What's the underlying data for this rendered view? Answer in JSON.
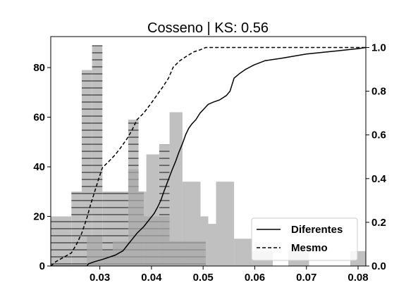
{
  "chart_data": {
    "type": "histogram+ecdf",
    "title": "Cosseno | KS: 0.56",
    "xlabel": "",
    "ylabel_left": "",
    "ylabel_right": "",
    "xlim": [
      0.0205,
      0.0815
    ],
    "ylim_left": [
      0,
      92.5
    ],
    "ylim_right": [
      0,
      1.05
    ],
    "x_ticks": [
      0.03,
      0.04,
      0.05,
      0.06,
      0.07,
      0.08
    ],
    "x_tick_labels": [
      "0.03",
      "0.04",
      "0.05",
      "0.06",
      "0.07",
      "0.08"
    ],
    "y_left_ticks": [
      0,
      20,
      40,
      60,
      80
    ],
    "y_left_tick_labels": [
      "0",
      "20",
      "40",
      "60",
      "80"
    ],
    "y_right_ticks": [
      0,
      0.2,
      0.4,
      0.6,
      0.8,
      1.0
    ],
    "y_right_tick_labels": [
      "0.0",
      "0.2",
      "0.4",
      "0.6",
      "0.8",
      "1.0"
    ],
    "grid": false,
    "legend_position": "lower-right",
    "histograms": [
      {
        "name": "Mesmo",
        "style": "hatched",
        "color": "#c0c0c0",
        "hatch_color": "#333333",
        "bins": [
          {
            "x0": 0.0205,
            "x1": 0.0245,
            "count": 20
          },
          {
            "x0": 0.0245,
            "x1": 0.0265,
            "count": 30
          },
          {
            "x0": 0.0265,
            "x1": 0.0285,
            "count": 79
          },
          {
            "x0": 0.0285,
            "x1": 0.0305,
            "count": 89
          },
          {
            "x0": 0.0305,
            "x1": 0.0355,
            "count": 30
          },
          {
            "x0": 0.0355,
            "x1": 0.0375,
            "count": 59
          },
          {
            "x0": 0.0375,
            "x1": 0.0385,
            "count": 30
          },
          {
            "x0": 0.0385,
            "x1": 0.0415,
            "count": 20
          },
          {
            "x0": 0.0415,
            "x1": 0.0435,
            "count": 49
          },
          {
            "x0": 0.0435,
            "x1": 0.0505,
            "count": 10
          }
        ]
      },
      {
        "name": "Diferentes",
        "style": "solid",
        "color": "#a8a8a8",
        "bins": [
          {
            "x0": 0.0275,
            "x1": 0.0305,
            "count": 12
          },
          {
            "x0": 0.0305,
            "x1": 0.0325,
            "count": 6
          },
          {
            "x0": 0.0325,
            "x1": 0.0355,
            "count": 10
          },
          {
            "x0": 0.0355,
            "x1": 0.0375,
            "count": 39
          },
          {
            "x0": 0.0375,
            "x1": 0.039,
            "count": 30
          },
          {
            "x0": 0.039,
            "x1": 0.0415,
            "count": 45
          },
          {
            "x0": 0.0415,
            "x1": 0.0435,
            "count": 20
          },
          {
            "x0": 0.0435,
            "x1": 0.046,
            "count": 62
          },
          {
            "x0": 0.046,
            "x1": 0.0495,
            "count": 34
          },
          {
            "x0": 0.0495,
            "x1": 0.051,
            "count": 20
          },
          {
            "x0": 0.051,
            "x1": 0.0525,
            "count": 17
          },
          {
            "x0": 0.0525,
            "x1": 0.056,
            "count": 34
          },
          {
            "x0": 0.056,
            "x1": 0.0595,
            "count": 11
          },
          {
            "x0": 0.0595,
            "x1": 0.0635,
            "count": 6
          },
          {
            "x0": 0.0665,
            "x1": 0.0705,
            "count": 6
          },
          {
            "x0": 0.0785,
            "x1": 0.0815,
            "count": 6
          }
        ]
      }
    ],
    "ecdf": [
      {
        "name": "Diferentes",
        "style": "solid",
        "color": "#000000",
        "points": [
          [
            0.0205,
            0.0
          ],
          [
            0.0275,
            0.0
          ],
          [
            0.0278,
            0.01
          ],
          [
            0.029,
            0.02
          ],
          [
            0.0305,
            0.03
          ],
          [
            0.033,
            0.05
          ],
          [
            0.0345,
            0.07
          ],
          [
            0.0355,
            0.1
          ],
          [
            0.0362,
            0.12
          ],
          [
            0.0372,
            0.15
          ],
          [
            0.0385,
            0.18
          ],
          [
            0.0395,
            0.21
          ],
          [
            0.0405,
            0.24
          ],
          [
            0.0412,
            0.27
          ],
          [
            0.0418,
            0.3
          ],
          [
            0.0424,
            0.34
          ],
          [
            0.0432,
            0.39
          ],
          [
            0.044,
            0.44
          ],
          [
            0.0447,
            0.48
          ],
          [
            0.0453,
            0.52
          ],
          [
            0.046,
            0.56
          ],
          [
            0.0466,
            0.6
          ],
          [
            0.0472,
            0.63
          ],
          [
            0.0478,
            0.65
          ],
          [
            0.0486,
            0.67
          ],
          [
            0.0494,
            0.7
          ],
          [
            0.0502,
            0.72
          ],
          [
            0.051,
            0.74
          ],
          [
            0.052,
            0.75
          ],
          [
            0.0532,
            0.76
          ],
          [
            0.0545,
            0.78
          ],
          [
            0.0552,
            0.8
          ],
          [
            0.0556,
            0.83
          ],
          [
            0.056,
            0.86
          ],
          [
            0.057,
            0.88
          ],
          [
            0.0582,
            0.9
          ],
          [
            0.0598,
            0.92
          ],
          [
            0.062,
            0.94
          ],
          [
            0.065,
            0.95
          ],
          [
            0.07,
            0.97
          ],
          [
            0.076,
            0.985
          ],
          [
            0.08,
            0.995
          ],
          [
            0.0815,
            1.0
          ]
        ]
      },
      {
        "name": "Mesmo",
        "style": "dashed",
        "color": "#000000",
        "points": [
          [
            0.0205,
            0.0
          ],
          [
            0.0215,
            0.02
          ],
          [
            0.023,
            0.04
          ],
          [
            0.0245,
            0.06
          ],
          [
            0.0255,
            0.1
          ],
          [
            0.0265,
            0.15
          ],
          [
            0.0275,
            0.22
          ],
          [
            0.0282,
            0.28
          ],
          [
            0.029,
            0.34
          ],
          [
            0.0298,
            0.4
          ],
          [
            0.0305,
            0.45
          ],
          [
            0.0318,
            0.48
          ],
          [
            0.033,
            0.51
          ],
          [
            0.034,
            0.54
          ],
          [
            0.0352,
            0.58
          ],
          [
            0.0362,
            0.62
          ],
          [
            0.0372,
            0.67
          ],
          [
            0.0385,
            0.7
          ],
          [
            0.0398,
            0.74
          ],
          [
            0.041,
            0.78
          ],
          [
            0.0422,
            0.82
          ],
          [
            0.0433,
            0.86
          ],
          [
            0.0442,
            0.91
          ],
          [
            0.0455,
            0.94
          ],
          [
            0.0468,
            0.96
          ],
          [
            0.0482,
            0.98
          ],
          [
            0.0495,
            0.99
          ],
          [
            0.0505,
            1.0
          ],
          [
            0.0815,
            1.0
          ]
        ]
      }
    ],
    "legend": [
      {
        "label": "Diferentes",
        "style": "solid"
      },
      {
        "label": "Mesmo",
        "style": "dashed"
      }
    ]
  }
}
